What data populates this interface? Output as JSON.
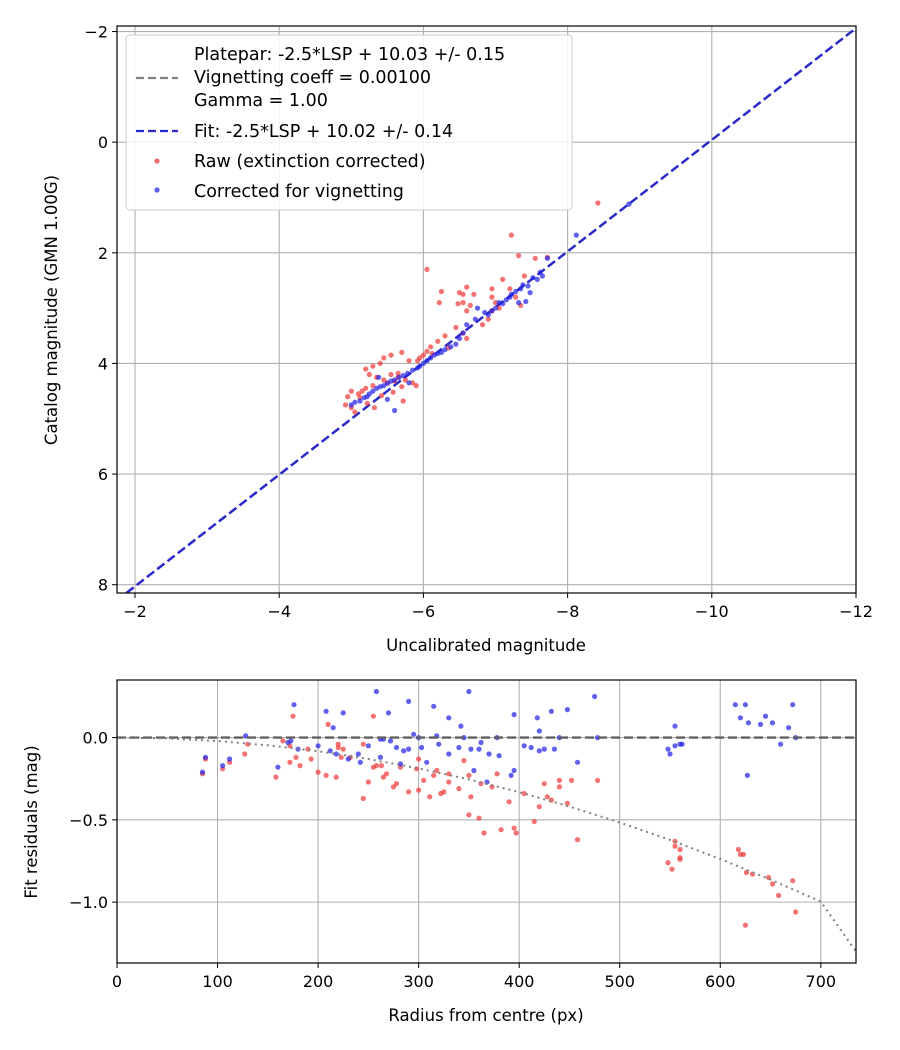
{
  "chart_data": [
    {
      "type": "scatter",
      "title": "",
      "xlabel": "Uncalibrated magnitude",
      "ylabel": "Catalog magnitude (GMN 1.00G)",
      "xlim": [
        -1.75,
        -12.0
      ],
      "ylim": [
        8.15,
        -2.1
      ],
      "xticks": [
        -2,
        -4,
        -6,
        -8,
        -10,
        -12
      ],
      "xtick_labels": [
        "−2",
        "−4",
        "−6",
        "−8",
        "−10",
        "−12"
      ],
      "yticks": [
        -2,
        0,
        2,
        4,
        6,
        8
      ],
      "ytick_labels": [
        "−2",
        "0",
        "2",
        "4",
        "6",
        "8"
      ],
      "grid": true,
      "legend_position": "upper-left",
      "legend": {
        "platepar_lines": [
          "Platepar: -2.5*LSP + 10.03 +/- 0.15",
          "Vignetting coeff = 0.00100",
          "Gamma = 1.00"
        ],
        "fit": "Fit: -2.5*LSP + 10.02 +/- 0.14",
        "raw": "Raw (extinction corrected)",
        "corrected": "Corrected for vignetting"
      },
      "lines": [
        {
          "name": "Platepar",
          "style": "dashed",
          "color": "#808080",
          "x": [
            -1.88,
            -12.0
          ],
          "y": [
            8.15,
            -2.06
          ]
        },
        {
          "name": "Fit",
          "style": "dashed",
          "color": "#2a2acf",
          "x": [
            -1.88,
            -12.0
          ],
          "y": [
            8.15,
            -2.06
          ]
        }
      ],
      "series": [
        {
          "name": "Raw (extinction corrected)",
          "color": "#f03c3c",
          "x": [
            -8.42,
            -7.22,
            -7.32,
            -7.55,
            -7.72,
            -6.05,
            -6.25,
            -6.22,
            -6.6,
            -6.5,
            -6.55,
            -6.55,
            -6.7,
            -6.48,
            -6.65,
            -6.6,
            -6.95,
            -6.95,
            -7.0,
            -7.05,
            -7.1,
            -7.2,
            -7.28,
            -7.35,
            -7.4,
            -6.95,
            -6.9,
            -6.82,
            -6.55,
            -6.45,
            -6.3,
            -6.2,
            -6.1,
            -6.05,
            -6.0,
            -5.95,
            -5.92,
            -5.8,
            -5.7,
            -5.55,
            -5.45,
            -5.4,
            -5.3,
            -5.2,
            -5.25,
            -5.35,
            -5.45,
            -5.55,
            -5.6,
            -5.65,
            -5.75,
            -5.85,
            -5.9,
            -5.5,
            -5.3,
            -5.2,
            -5.15,
            -5.1,
            -5.0,
            -4.95,
            -4.92,
            -5.0,
            -5.05,
            -5.12,
            -5.22,
            -5.32,
            -5.42,
            -5.58,
            -5.72,
            -5.7,
            -5.65,
            -6.12,
            -6.35,
            -6.6
          ],
          "y": [
            1.1,
            1.68,
            2.05,
            2.1,
            2.08,
            2.3,
            2.7,
            2.9,
            2.62,
            2.72,
            2.75,
            2.9,
            2.75,
            2.92,
            2.95,
            3.05,
            2.65,
            2.8,
            2.9,
            3.0,
            2.48,
            2.65,
            2.8,
            2.95,
            2.42,
            3.05,
            3.2,
            3.3,
            3.45,
            3.35,
            3.5,
            3.6,
            3.7,
            3.78,
            3.85,
            3.9,
            3.95,
            3.95,
            3.8,
            3.85,
            3.9,
            4.0,
            4.05,
            4.1,
            4.2,
            4.25,
            4.3,
            4.2,
            4.32,
            4.25,
            4.3,
            4.35,
            4.4,
            4.35,
            4.4,
            4.45,
            4.5,
            4.55,
            4.5,
            4.6,
            4.75,
            4.8,
            4.88,
            4.62,
            4.72,
            4.8,
            4.58,
            4.52,
            4.68,
            4.42,
            4.18,
            3.82,
            3.72,
            3.55
          ]
        },
        {
          "name": "Corrected for vignetting",
          "color": "#2424e6",
          "x": [
            -8.85,
            -8.12,
            -7.72,
            -7.62,
            -7.52,
            -7.45,
            -7.38,
            -7.35,
            -7.28,
            -7.22,
            -7.2,
            -7.15,
            -7.1,
            -7.05,
            -7.0,
            -6.95,
            -6.9,
            -6.85,
            -6.72,
            -6.6,
            -6.55,
            -6.5,
            -6.45,
            -6.38,
            -6.3,
            -6.25,
            -6.2,
            -6.15,
            -6.1,
            -6.05,
            -6.0,
            -5.95,
            -5.92,
            -5.85,
            -5.78,
            -5.72,
            -5.66,
            -5.6,
            -5.55,
            -5.5,
            -5.45,
            -5.4,
            -5.35,
            -5.3,
            -5.25,
            -5.22,
            -5.18,
            -5.12,
            -5.05,
            -5.0,
            -5.6,
            -5.8,
            -5.5,
            -5.38,
            -7.42,
            -7.58,
            -7.65,
            -7.32,
            -7.48,
            -6.75
          ],
          "y": [
            1.12,
            1.68,
            2.1,
            2.35,
            2.45,
            2.6,
            2.58,
            2.65,
            2.7,
            2.75,
            2.8,
            2.85,
            2.92,
            2.9,
            3.0,
            3.05,
            3.12,
            3.08,
            3.2,
            3.3,
            3.45,
            3.55,
            3.65,
            3.7,
            3.75,
            3.8,
            3.82,
            3.85,
            3.9,
            3.95,
            4.0,
            4.05,
            4.08,
            4.12,
            4.18,
            4.22,
            4.25,
            4.3,
            4.32,
            4.36,
            4.4,
            4.42,
            4.45,
            4.5,
            4.55,
            4.6,
            4.62,
            4.68,
            4.7,
            4.75,
            4.85,
            4.35,
            4.65,
            4.25,
            2.88,
            2.48,
            2.42,
            2.9,
            2.72,
            3.0
          ]
        }
      ]
    },
    {
      "type": "scatter",
      "title": "",
      "xlabel": "Radius from centre (px)",
      "ylabel": "Fit residuals (mag)",
      "xlim": [
        0,
        735
      ],
      "ylim": [
        -1.37,
        0.35
      ],
      "xticks": [
        0,
        100,
        200,
        300,
        400,
        500,
        600,
        700
      ],
      "xtick_labels": [
        "0",
        "100",
        "200",
        "300",
        "400",
        "500",
        "600",
        "700"
      ],
      "yticks": [
        -1.0,
        -0.5,
        0.0
      ],
      "ytick_labels": [
        "−1.0",
        "−0.5",
        "0.0"
      ],
      "grid": true,
      "lines": [
        {
          "name": "zero",
          "style": "dashed",
          "color": "#606060",
          "x": [
            0,
            735
          ],
          "y": [
            0,
            0
          ]
        },
        {
          "name": "vignetting model",
          "style": "dotted",
          "color": "#808080",
          "x": [
            0,
            50,
            100,
            150,
            200,
            250,
            300,
            350,
            400,
            450,
            500,
            550,
            600,
            650,
            700,
            735
          ],
          "y": [
            0,
            -0.005,
            -0.021,
            -0.047,
            -0.083,
            -0.13,
            -0.187,
            -0.254,
            -0.332,
            -0.419,
            -0.516,
            -0.622,
            -0.738,
            -0.863,
            -0.997,
            -1.3
          ]
        }
      ],
      "series": [
        {
          "name": "Raw (extinction corrected)",
          "color": "#f03c3c",
          "x": [
            85,
            88,
            105,
            112,
            127,
            130,
            158,
            172,
            175,
            178,
            182,
            210,
            218,
            220,
            220,
            223,
            255,
            258,
            263,
            265,
            275,
            282,
            290,
            298,
            300,
            305,
            311,
            318,
            325,
            330,
            340,
            345,
            350,
            352,
            360,
            362,
            365,
            373,
            382,
            395,
            397,
            420,
            425,
            428,
            432,
            440,
            458,
            478,
            548,
            552,
            555,
            560,
            618,
            623,
            626,
            625,
            648,
            652,
            658,
            672,
            675
          ],
          "y": [
            -0.22,
            -0.13,
            -0.19,
            -0.15,
            -0.1,
            -0.04,
            -0.24,
            -0.15,
            0.13,
            -0.12,
            -0.17,
            0.08,
            -0.24,
            -0.04,
            -0.06,
            -0.12,
            0.13,
            -0.17,
            -0.17,
            -0.24,
            -0.3,
            -0.18,
            -0.33,
            -0.19,
            -0.32,
            -0.26,
            -0.36,
            -0.2,
            -0.33,
            -0.22,
            -0.31,
            -0.14,
            -0.47,
            -0.36,
            -0.49,
            -0.28,
            -0.58,
            -0.3,
            -0.56,
            -0.55,
            -0.58,
            -0.42,
            -0.28,
            -0.36,
            -0.38,
            -0.3,
            -0.62,
            -0.26,
            -0.76,
            -0.8,
            -0.63,
            -0.73,
            -0.68,
            -0.71,
            -0.82,
            -1.14,
            -0.85,
            -0.89,
            -0.96,
            -0.87,
            -1.06
          ],
          "extra_x": [
            165,
            172,
            190,
            193,
            200,
            208,
            225,
            232,
            245,
            245,
            250,
            255,
            268,
            278,
            300,
            315,
            322,
            330,
            350,
            378,
            390,
            405,
            415,
            440,
            448,
            452,
            555,
            560,
            560,
            620,
            632
          ],
          "extra_y": [
            -0.02,
            -0.05,
            -0.07,
            -0.13,
            -0.21,
            -0.23,
            -0.07,
            -0.12,
            -0.04,
            -0.37,
            -0.27,
            -0.18,
            -0.22,
            -0.28,
            -0.13,
            -0.23,
            -0.34,
            -0.27,
            -0.23,
            -0.22,
            -0.39,
            -0.34,
            -0.51,
            -0.26,
            -0.4,
            -0.26,
            -0.66,
            -0.74,
            -0.68,
            -0.71,
            -0.83
          ]
        },
        {
          "name": "Corrected for vignetting",
          "color": "#2424e6",
          "x": [
            85,
            88,
            105,
            112,
            128,
            160,
            173,
            176,
            180,
            208,
            215,
            218,
            225,
            242,
            258,
            262,
            265,
            270,
            278,
            285,
            290,
            295,
            300,
            308,
            315,
            320,
            330,
            342,
            345,
            350,
            355,
            360,
            368,
            378,
            392,
            395,
            418,
            420,
            425,
            432,
            440,
            448,
            458,
            475,
            478,
            548,
            550,
            555,
            562,
            615,
            620,
            625,
            627,
            645,
            652,
            668,
            672
          ],
          "y": [
            -0.21,
            -0.12,
            -0.17,
            -0.13,
            0.01,
            -0.18,
            -0.02,
            0.2,
            -0.07,
            0.16,
            0.06,
            -0.1,
            0.15,
            -0.15,
            0.28,
            -0.01,
            -0.01,
            0.15,
            -0.06,
            -0.08,
            0.22,
            0.02,
            0.0,
            -0.15,
            0.19,
            -0.04,
            0.12,
            0.07,
            0.0,
            0.28,
            -0.2,
            -0.07,
            -0.27,
            0.0,
            -0.23,
            0.14,
            0.12,
            0.04,
            -0.07,
            0.16,
            0.0,
            0.17,
            -0.15,
            0.25,
            0.0,
            -0.07,
            -0.1,
            0.07,
            -0.04,
            0.2,
            0.12,
            0.2,
            -0.23,
            0.13,
            0.09,
            0.06,
            0.2
          ],
          "extra_x": [
            170,
            200,
            212,
            230,
            240,
            250,
            262,
            272,
            282,
            290,
            303,
            318,
            330,
            340,
            352,
            362,
            370,
            380,
            395,
            405,
            412,
            420,
            435,
            555,
            560,
            628,
            640,
            660,
            675
          ],
          "extra_y": [
            -0.03,
            -0.05,
            -0.08,
            -0.13,
            -0.1,
            -0.05,
            -0.12,
            -0.02,
            -0.16,
            -0.07,
            -0.06,
            0.01,
            -0.1,
            -0.06,
            -0.07,
            -0.03,
            -0.1,
            -0.11,
            -0.2,
            -0.05,
            -0.06,
            -0.08,
            -0.07,
            -0.05,
            -0.04,
            0.09,
            0.08,
            -0.04,
            0.0
          ]
        }
      ]
    }
  ]
}
